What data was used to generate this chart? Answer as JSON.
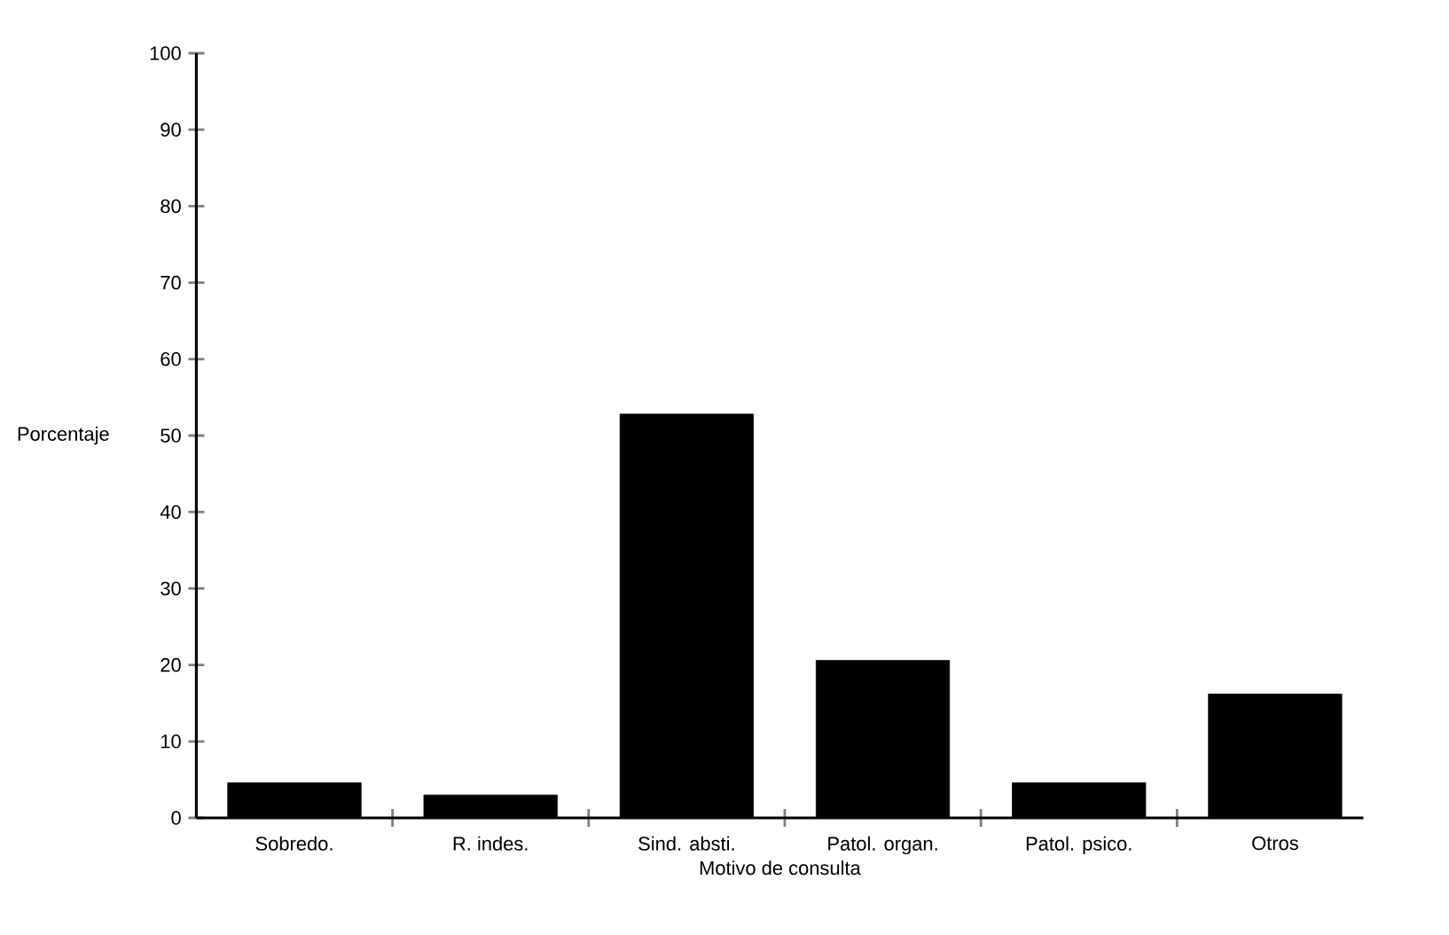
{
  "chart_data": {
    "type": "bar",
    "xlabel": "Motivo de consulta",
    "ylabel": "Porcentaje",
    "categories": [
      "Sobredo.",
      "R. indes.",
      "Sind. absti.",
      "Patol. organ.",
      "Patol. psico.",
      "Otros"
    ],
    "values": [
      4.6,
      3,
      52.8,
      20.6,
      4.6,
      16.2
    ],
    "color": "#000000",
    "ylim": [
      0,
      100
    ],
    "yticks": [
      0,
      10,
      20,
      30,
      40,
      50,
      60,
      70,
      80,
      90,
      100
    ]
  }
}
